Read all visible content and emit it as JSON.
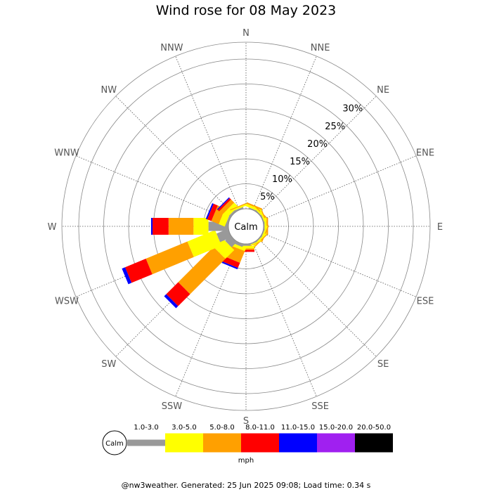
{
  "title": "Wind rose for 08 May 2023",
  "footer": "@nw3weather. Generated: 25 Jun 2025 09:08; Load time: 0.34 s",
  "calm_label": "Calm",
  "unit_label": "mph",
  "chart_data": {
    "type": "wind_rose",
    "directions": [
      "N",
      "NNE",
      "NE",
      "ENE",
      "E",
      "ESE",
      "SE",
      "SSE",
      "S",
      "SSW",
      "SW",
      "WSW",
      "W",
      "WNW",
      "NW",
      "NNW"
    ],
    "ring_ticks": [
      "5%",
      "10%",
      "15%",
      "20%",
      "25%",
      "30%"
    ],
    "ring_values": [
      5,
      10,
      15,
      20,
      25,
      30
    ],
    "speed_bins": [
      {
        "label": "1.0-3.0",
        "color": "#999999"
      },
      {
        "label": "3.0-5.0",
        "color": "#ffff00"
      },
      {
        "label": "5.0-8.0",
        "color": "#ffa000"
      },
      {
        "label": "8.0-11.0",
        "color": "#ff0000"
      },
      {
        "label": "11.0-15.0",
        "color": "#0000ff"
      },
      {
        "label": "15.0-20.0",
        "color": "#a020f0"
      },
      {
        "label": "20.0-50.0",
        "color": "#000000"
      }
    ],
    "series": [
      {
        "direction": "N",
        "values": [
          0.0,
          0.0,
          0.0,
          0.0,
          0.0,
          0,
          0
        ]
      },
      {
        "direction": "NNE",
        "values": [
          0.2,
          0.5,
          0.3,
          0.0,
          0.0,
          0,
          0
        ]
      },
      {
        "direction": "NE",
        "values": [
          0.2,
          0.3,
          0.2,
          0.0,
          0.0,
          0,
          0
        ]
      },
      {
        "direction": "ENE",
        "values": [
          0.2,
          0.3,
          0.2,
          0.0,
          0.0,
          0,
          0
        ]
      },
      {
        "direction": "E",
        "values": [
          0.2,
          0.4,
          0.3,
          0.0,
          0.0,
          0,
          0
        ]
      },
      {
        "direction": "ESE",
        "values": [
          0.2,
          0.3,
          0.2,
          0.0,
          0.0,
          0,
          0
        ]
      },
      {
        "direction": "SE",
        "values": [
          0.2,
          0.3,
          0.2,
          0.0,
          0.0,
          0,
          0
        ]
      },
      {
        "direction": "SSE",
        "values": [
          0.2,
          0.2,
          0.1,
          0.0,
          0.0,
          0,
          0
        ]
      },
      {
        "direction": "S",
        "values": [
          0.4,
          0.5,
          0.3,
          0.4,
          0.0,
          0,
          0
        ]
      },
      {
        "direction": "SSW",
        "values": [
          0.6,
          0.6,
          2.5,
          1.1,
          0.3,
          0,
          0
        ]
      },
      {
        "direction": "SW",
        "values": [
          1.5,
          2.5,
          10.0,
          3.4,
          0.6,
          0,
          0
        ]
      },
      {
        "direction": "WSW",
        "values": [
          2.5,
          6.0,
          9.0,
          4.5,
          0.7,
          0,
          0
        ]
      },
      {
        "direction": "W",
        "values": [
          4.0,
          3.0,
          5.0,
          3.2,
          0.3,
          0,
          0
        ]
      },
      {
        "direction": "WNW",
        "values": [
          0.4,
          1.3,
          1.6,
          0.9,
          0.3,
          0,
          0
        ]
      },
      {
        "direction": "NW",
        "values": [
          0.4,
          1.1,
          0.9,
          0.4,
          0.2,
          0,
          0
        ]
      },
      {
        "direction": "NNW",
        "values": [
          0.3,
          0.3,
          0.2,
          0.0,
          0.0,
          0,
          0
        ]
      }
    ],
    "grid": true,
    "legend": "bottom"
  }
}
